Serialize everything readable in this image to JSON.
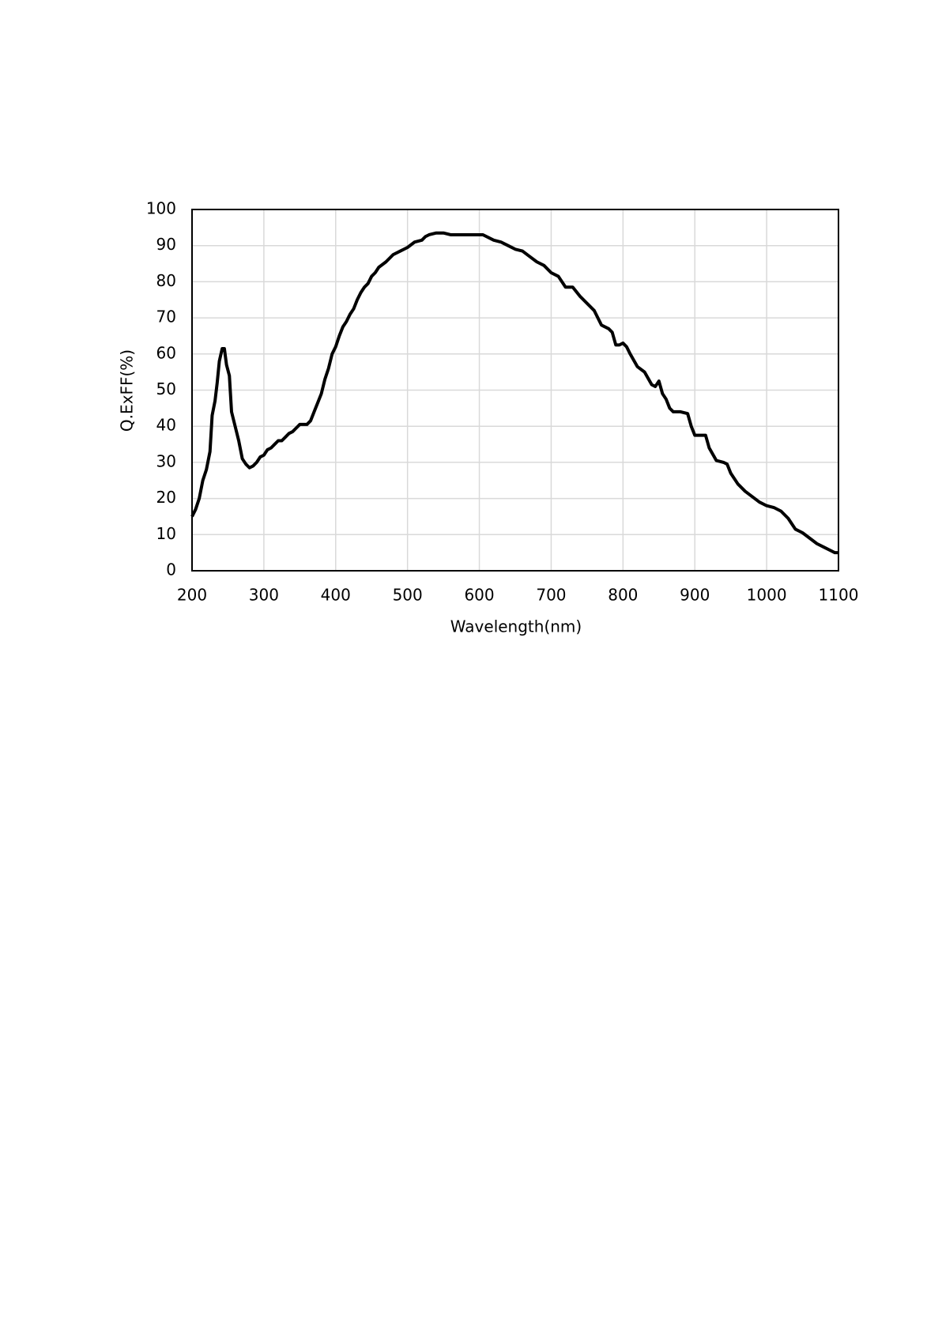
{
  "chart_data": {
    "type": "line",
    "x_label": "Wavelength(nm)",
    "y_label": "Q.ExFF(%)",
    "x": [
      200,
      205,
      210,
      215,
      220,
      225,
      228,
      232,
      235,
      238,
      242,
      245,
      248,
      252,
      255,
      260,
      265,
      270,
      275,
      280,
      285,
      290,
      295,
      300,
      305,
      310,
      315,
      320,
      325,
      330,
      335,
      340,
      345,
      350,
      355,
      360,
      365,
      370,
      375,
      380,
      385,
      390,
      395,
      400,
      405,
      410,
      415,
      420,
      425,
      430,
      435,
      440,
      445,
      450,
      455,
      460,
      470,
      480,
      490,
      500,
      510,
      520,
      525,
      530,
      540,
      550,
      560,
      570,
      580,
      590,
      600,
      605,
      610,
      620,
      630,
      640,
      650,
      660,
      670,
      680,
      690,
      700,
      710,
      720,
      730,
      740,
      750,
      760,
      770,
      780,
      785,
      790,
      795,
      800,
      805,
      810,
      820,
      830,
      840,
      845,
      850,
      855,
      860,
      865,
      870,
      880,
      890,
      895,
      900,
      910,
      915,
      920,
      930,
      940,
      945,
      950,
      960,
      970,
      980,
      990,
      1000,
      1010,
      1020,
      1030,
      1035,
      1040,
      1050,
      1060,
      1070,
      1080,
      1090,
      1095,
      1100
    ],
    "values": [
      15,
      17,
      20,
      25,
      28,
      33,
      43,
      47,
      52,
      58,
      61.5,
      61.5,
      57,
      54,
      44,
      40,
      36,
      31,
      29.5,
      28.5,
      29,
      30,
      31.5,
      32,
      33.5,
      34,
      35,
      36,
      36,
      37,
      38,
      38.5,
      39.5,
      40.5,
      40.5,
      40.5,
      41.5,
      44,
      46.5,
      49,
      53,
      56,
      60,
      62,
      65,
      67.5,
      69,
      71,
      72.5,
      75,
      77,
      78.5,
      79.5,
      81.5,
      82.5,
      84,
      85.5,
      87.5,
      88.5,
      89.5,
      91,
      91.5,
      92.5,
      93,
      93.5,
      93.5,
      93,
      93,
      93,
      93,
      93,
      93,
      92.5,
      91.5,
      91,
      90,
      89,
      88.5,
      87,
      85.5,
      84.5,
      82.5,
      81.5,
      78.5,
      78.5,
      76,
      74,
      72,
      68,
      67,
      66,
      62.5,
      62.5,
      63,
      62,
      60,
      56.5,
      55,
      51.5,
      51,
      52.5,
      49,
      47.5,
      45,
      44,
      44,
      43.5,
      40,
      37.5,
      37.5,
      37.5,
      34,
      30.5,
      30,
      29.5,
      27,
      24,
      22,
      20.5,
      19,
      18,
      17.5,
      16.5,
      14.5,
      13,
      11.5,
      10.5,
      9,
      7.5,
      6.5,
      5.5,
      5,
      5
    ],
    "color": "#000000",
    "xlim": [
      200,
      1100
    ],
    "xticks": [
      200,
      300,
      400,
      500,
      600,
      700,
      800,
      900,
      1000,
      1100
    ],
    "ylim": [
      0,
      100
    ],
    "yticks": [
      0,
      10,
      20,
      30,
      40,
      50,
      60,
      70,
      80,
      90,
      100
    ],
    "grid": true
  }
}
